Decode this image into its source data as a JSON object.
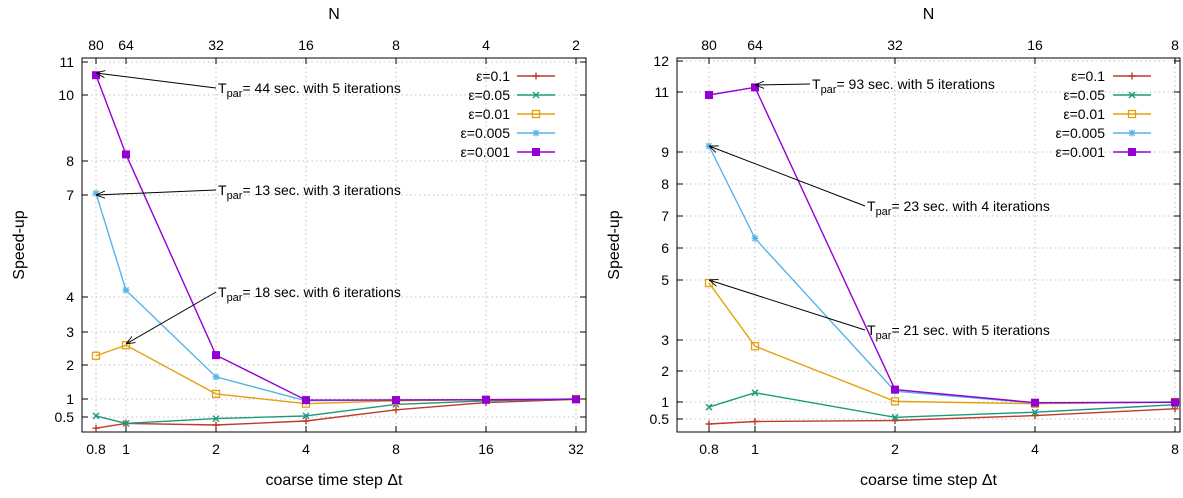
{
  "chart_data": [
    {
      "type": "line",
      "xlabel": "coarse time step Δt",
      "ylabel": "Speed-up",
      "x2label": "N",
      "x_ticks": [
        0.8,
        1,
        2,
        4,
        8,
        16,
        32
      ],
      "x_tick_labels": [
        "0.8",
        "1",
        "2",
        "4",
        "8",
        "16",
        "32"
      ],
      "x2_ticks": [
        0.8,
        1,
        2,
        4,
        8,
        16,
        32
      ],
      "x2_tick_labels": [
        "80",
        "64",
        "32",
        "16",
        "8",
        "4",
        "2"
      ],
      "y_ticks": [
        0.5,
        1,
        2,
        3,
        4,
        7,
        8,
        10,
        11
      ],
      "y_tick_labels": [
        "0.5",
        "1",
        "2",
        "3",
        "4",
        "7",
        "8",
        "10",
        "11"
      ],
      "grid": true,
      "legend": "top-right",
      "series": [
        {
          "name": "ε=0.1",
          "color": "#c0392b",
          "marker": "plus",
          "x": [
            0.8,
            1,
            2,
            4,
            8,
            16,
            32
          ],
          "y": [
            0.22,
            0.34,
            0.3,
            0.4,
            0.7,
            0.9,
            0.99
          ]
        },
        {
          "name": "ε=0.05",
          "color": "#1a9a7a",
          "marker": "x",
          "x": [
            0.8,
            1,
            2,
            4,
            8,
            16,
            32
          ],
          "y": [
            0.53,
            0.34,
            0.46,
            0.53,
            0.85,
            0.95,
            1.0
          ]
        },
        {
          "name": "ε=0.01",
          "color": "#e5a00d",
          "marker": "square-open",
          "x": [
            0.8,
            1,
            2,
            4,
            8,
            16,
            32
          ],
          "y": [
            2.28,
            2.6,
            1.15,
            0.87,
            0.95,
            0.98,
            1.0
          ]
        },
        {
          "name": "ε=0.005",
          "color": "#56b4e9",
          "marker": "star",
          "x": [
            0.8,
            1,
            2,
            4,
            8,
            16,
            32
          ],
          "y": [
            7.05,
            4.2,
            1.65,
            0.95,
            0.98,
            0.98,
            1.0
          ]
        },
        {
          "name": "ε=0.001",
          "color": "#9400d3",
          "marker": "square-filled",
          "x": [
            0.8,
            1,
            2,
            4,
            8,
            16,
            32
          ],
          "y": [
            10.6,
            8.2,
            2.3,
            0.97,
            0.97,
            0.98,
            0.99
          ]
        }
      ],
      "annotations": [
        {
          "sym": "T",
          "sub": "par",
          "rest": "= 44 sec. with 5 iterations",
          "x": 0.8,
          "y": 10.6
        },
        {
          "sym": "T",
          "sub": "par",
          "rest": "= 13 sec. with 3 iterations",
          "x": 0.8,
          "y": 7.05
        },
        {
          "sym": "T",
          "sub": "par",
          "rest": "= 18 sec. with 6 iterations",
          "x": 1,
          "y": 2.6
        }
      ]
    },
    {
      "type": "line",
      "xlabel": "coarse time step Δt",
      "ylabel": "Speed-up",
      "x2label": "N",
      "x_ticks": [
        0.8,
        1,
        2,
        4,
        8
      ],
      "x_tick_labels": [
        "0.8",
        "1",
        "2",
        "4",
        "8"
      ],
      "x2_ticks": [
        0.8,
        1,
        2,
        4,
        8
      ],
      "x2_tick_labels": [
        "80",
        "64",
        "32",
        "16",
        "8"
      ],
      "y_ticks": [
        0.5,
        1,
        2,
        3,
        5,
        6,
        7,
        8,
        9,
        11,
        12
      ],
      "y_tick_labels": [
        "0.5",
        "1",
        "2",
        "3",
        "5",
        "6",
        "7",
        "8",
        "9",
        "11",
        "12"
      ],
      "grid": true,
      "legend": "top-right",
      "series": [
        {
          "name": "ε=0.1",
          "color": "#c0392b",
          "marker": "plus",
          "x": [
            0.8,
            1,
            2,
            4,
            8
          ],
          "y": [
            0.4,
            0.45,
            0.47,
            0.6,
            0.8
          ]
        },
        {
          "name": "ε=0.05",
          "color": "#1a9a7a",
          "marker": "x",
          "x": [
            0.8,
            1,
            2,
            4,
            8
          ],
          "y": [
            0.85,
            1.3,
            0.55,
            0.7,
            0.92
          ]
        },
        {
          "name": "ε=0.01",
          "color": "#e5a00d",
          "marker": "square-open",
          "x": [
            0.8,
            1,
            2,
            4,
            8
          ],
          "y": [
            4.9,
            2.8,
            1.02,
            0.95,
            1.0
          ]
        },
        {
          "name": "ε=0.005",
          "color": "#56b4e9",
          "marker": "star",
          "x": [
            0.8,
            1,
            2,
            4,
            8
          ],
          "y": [
            9.2,
            6.3,
            1.35,
            0.97,
            1.0
          ]
        },
        {
          "name": "ε=0.001",
          "color": "#9400d3",
          "marker": "square-filled",
          "x": [
            0.8,
            1,
            2,
            4,
            8
          ],
          "y": [
            10.9,
            11.15,
            1.4,
            0.98,
            0.99
          ]
        }
      ],
      "annotations": [
        {
          "sym": "T",
          "sub": "par",
          "rest": "= 93 sec. with 5 iterations",
          "x": 1,
          "y": 11.15
        },
        {
          "sym": "T",
          "sub": "par",
          "rest": "= 23 sec. with 4 iterations",
          "x": 0.8,
          "y": 9.2
        },
        {
          "sym": "T",
          "sub": "par",
          "rest": "= 21 sec. with 5 iterations",
          "x": 0.8,
          "y": 4.9
        }
      ]
    }
  ]
}
